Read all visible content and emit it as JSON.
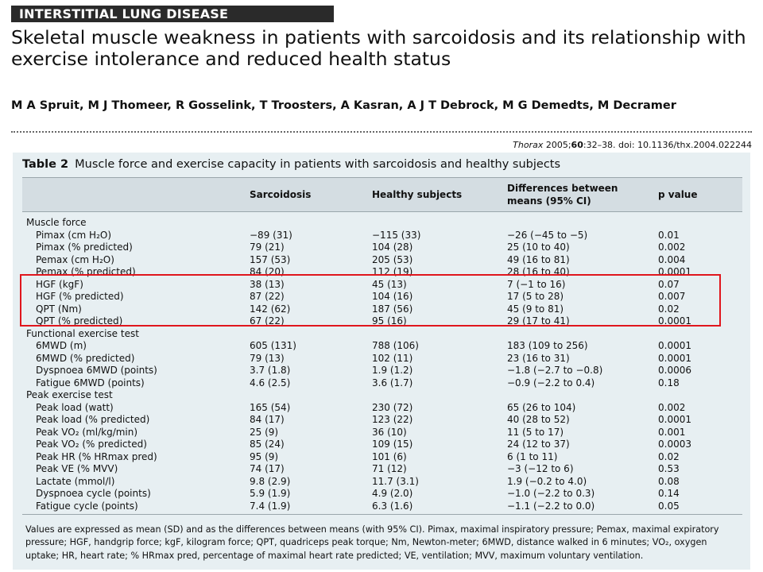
{
  "section_label": "INTERSTITIAL LUNG DISEASE",
  "article_title": "Skeletal muscle weakness in patients with sarcoidosis and its relationship with exercise intolerance and reduced health status",
  "authors": "M A Spruit, M J Thomeer, R Gosselink, T Troosters, A Kasran, A J T Debrock, M G Demedts, M Decramer",
  "citation": {
    "journal": "Thorax",
    "year": "2005;",
    "volume": "60",
    "pages_doi": ":32–38. doi: 10.1136/thx.2004.022244"
  },
  "table": {
    "label": "Table 2",
    "caption": "Muscle force and exercise capacity in patients with sarcoidosis and healthy subjects",
    "headers": {
      "sarcoidosis": "Sarcoidosis",
      "healthy": "Healthy subjects",
      "diff_line1": "Differences between",
      "diff_line2": "means (95% CI)",
      "p": "p value"
    },
    "rows": [
      {
        "label": "Muscle force",
        "section": true
      },
      {
        "label": "Pimax (cm H₂O)",
        "sarcoidosis": "−89 (31)",
        "healthy": "−115 (33)",
        "diff": "−26 (−45 to −5)",
        "p": "0.01"
      },
      {
        "label": "Pimax (% predicted)",
        "sarcoidosis": "79 (21)",
        "healthy": "104 (28)",
        "diff": "25 (10 to 40)",
        "p": "0.002"
      },
      {
        "label": "Pemax (cm H₂O)",
        "sarcoidosis": "157 (53)",
        "healthy": "205 (53)",
        "diff": "49 (16 to 81)",
        "p": "0.004"
      },
      {
        "label": "Pemax (% predicted)",
        "sarcoidosis": "84 (20)",
        "healthy": "112 (19)",
        "diff": "28 (16 to 40)",
        "p": "0.0001"
      },
      {
        "label": "HGF (kgF)",
        "sarcoidosis": "38 (13)",
        "healthy": "45 (13)",
        "diff": "7 (−1 to 16)",
        "p": "0.07"
      },
      {
        "label": "HGF (% predicted)",
        "sarcoidosis": "87 (22)",
        "healthy": "104 (16)",
        "diff": "17 (5 to 28)",
        "p": "0.007"
      },
      {
        "label": "QPT (Nm)",
        "sarcoidosis": "142 (62)",
        "healthy": "187 (56)",
        "diff": "45 (9 to 81)",
        "p": "0.02"
      },
      {
        "label": "QPT (% predicted)",
        "sarcoidosis": "67 (22)",
        "healthy": "95 (16)",
        "diff": "29 (17 to 41)",
        "p": "0.0001"
      },
      {
        "label": "Functional exercise test",
        "section": true
      },
      {
        "label": "6MWD (m)",
        "sarcoidosis": "605 (131)",
        "healthy": "788 (106)",
        "diff": "183 (109 to 256)",
        "p": "0.0001"
      },
      {
        "label": "6MWD (% predicted)",
        "sarcoidosis": "79 (13)",
        "healthy": "102 (11)",
        "diff": "23 (16 to 31)",
        "p": "0.0001"
      },
      {
        "label": "Dyspnoea 6MWD (points)",
        "sarcoidosis": "3.7 (1.8)",
        "healthy": "1.9 (1.2)",
        "diff": "−1.8 (−2.7 to −0.8)",
        "p": "0.0006"
      },
      {
        "label": "Fatigue 6MWD (points)",
        "sarcoidosis": "4.6 (2.5)",
        "healthy": "3.6 (1.7)",
        "diff": "−0.9 (−2.2 to 0.4)",
        "p": "0.18"
      },
      {
        "label": "Peak exercise test",
        "section": true
      },
      {
        "label": "Peak load (watt)",
        "sarcoidosis": "165 (54)",
        "healthy": "230 (72)",
        "diff": "65 (26 to 104)",
        "p": "0.002"
      },
      {
        "label": "Peak load (% predicted)",
        "sarcoidosis": "84 (17)",
        "healthy": "123 (22)",
        "diff": "40 (28 to 52)",
        "p": "0.0001"
      },
      {
        "label": "Peak VO₂ (ml/kg/min)",
        "sarcoidosis": "25 (9)",
        "healthy": "36 (10)",
        "diff": "11 (5 to 17)",
        "p": "0.001"
      },
      {
        "label": "Peak VO₂ (% predicted)",
        "sarcoidosis": "85 (24)",
        "healthy": "109 (15)",
        "diff": "24 (12 to 37)",
        "p": "0.0003"
      },
      {
        "label": "Peak HR (% HRmax pred)",
        "sarcoidosis": "95 (9)",
        "healthy": "101 (6)",
        "diff": "6 (1 to 11)",
        "p": "0.02"
      },
      {
        "label": "Peak VE (% MVV)",
        "sarcoidosis": "74 (17)",
        "healthy": "71 (12)",
        "diff": "−3 (−12 to 6)",
        "p": "0.53"
      },
      {
        "label": "Lactate (mmol/l)",
        "sarcoidosis": "9.8 (2.9)",
        "healthy": "11.7 (3.1)",
        "diff": "1.9 (−0.2 to 4.0)",
        "p": "0.08"
      },
      {
        "label": "Dyspnoea cycle (points)",
        "sarcoidosis": "5.9 (1.9)",
        "healthy": "4.9 (2.0)",
        "diff": "−1.0 (−2.2 to 0.3)",
        "p": "0.14"
      },
      {
        "label": "Fatigue cycle (points)",
        "sarcoidosis": "7.4 (1.9)",
        "healthy": "6.3 (1.6)",
        "diff": "−1.1 (−2.2 to 0.0)",
        "p": "0.05"
      }
    ],
    "footnote": "Values are expressed as mean (SD) and as the differences between means (with 95% CI). Pimax, maximal inspiratory pressure; Pemax, maximal expiratory pressure; HGF, handgrip force; kgF, kilogram force; QPT, quadriceps peak torque; Nm, Newton-meter; 6MWD, distance walked in 6 minutes; VO₂, oxygen uptake; HR, heart rate; % HRmax pred, percentage of maximal heart rate predicted; VE, ventilation; MVV, maximum voluntary ventilation."
  },
  "colors": {
    "highlight_box": "#e0161d",
    "table_background": "#e7eff2",
    "header_band": "#d4dde2",
    "banner": "#2a2a2a"
  }
}
